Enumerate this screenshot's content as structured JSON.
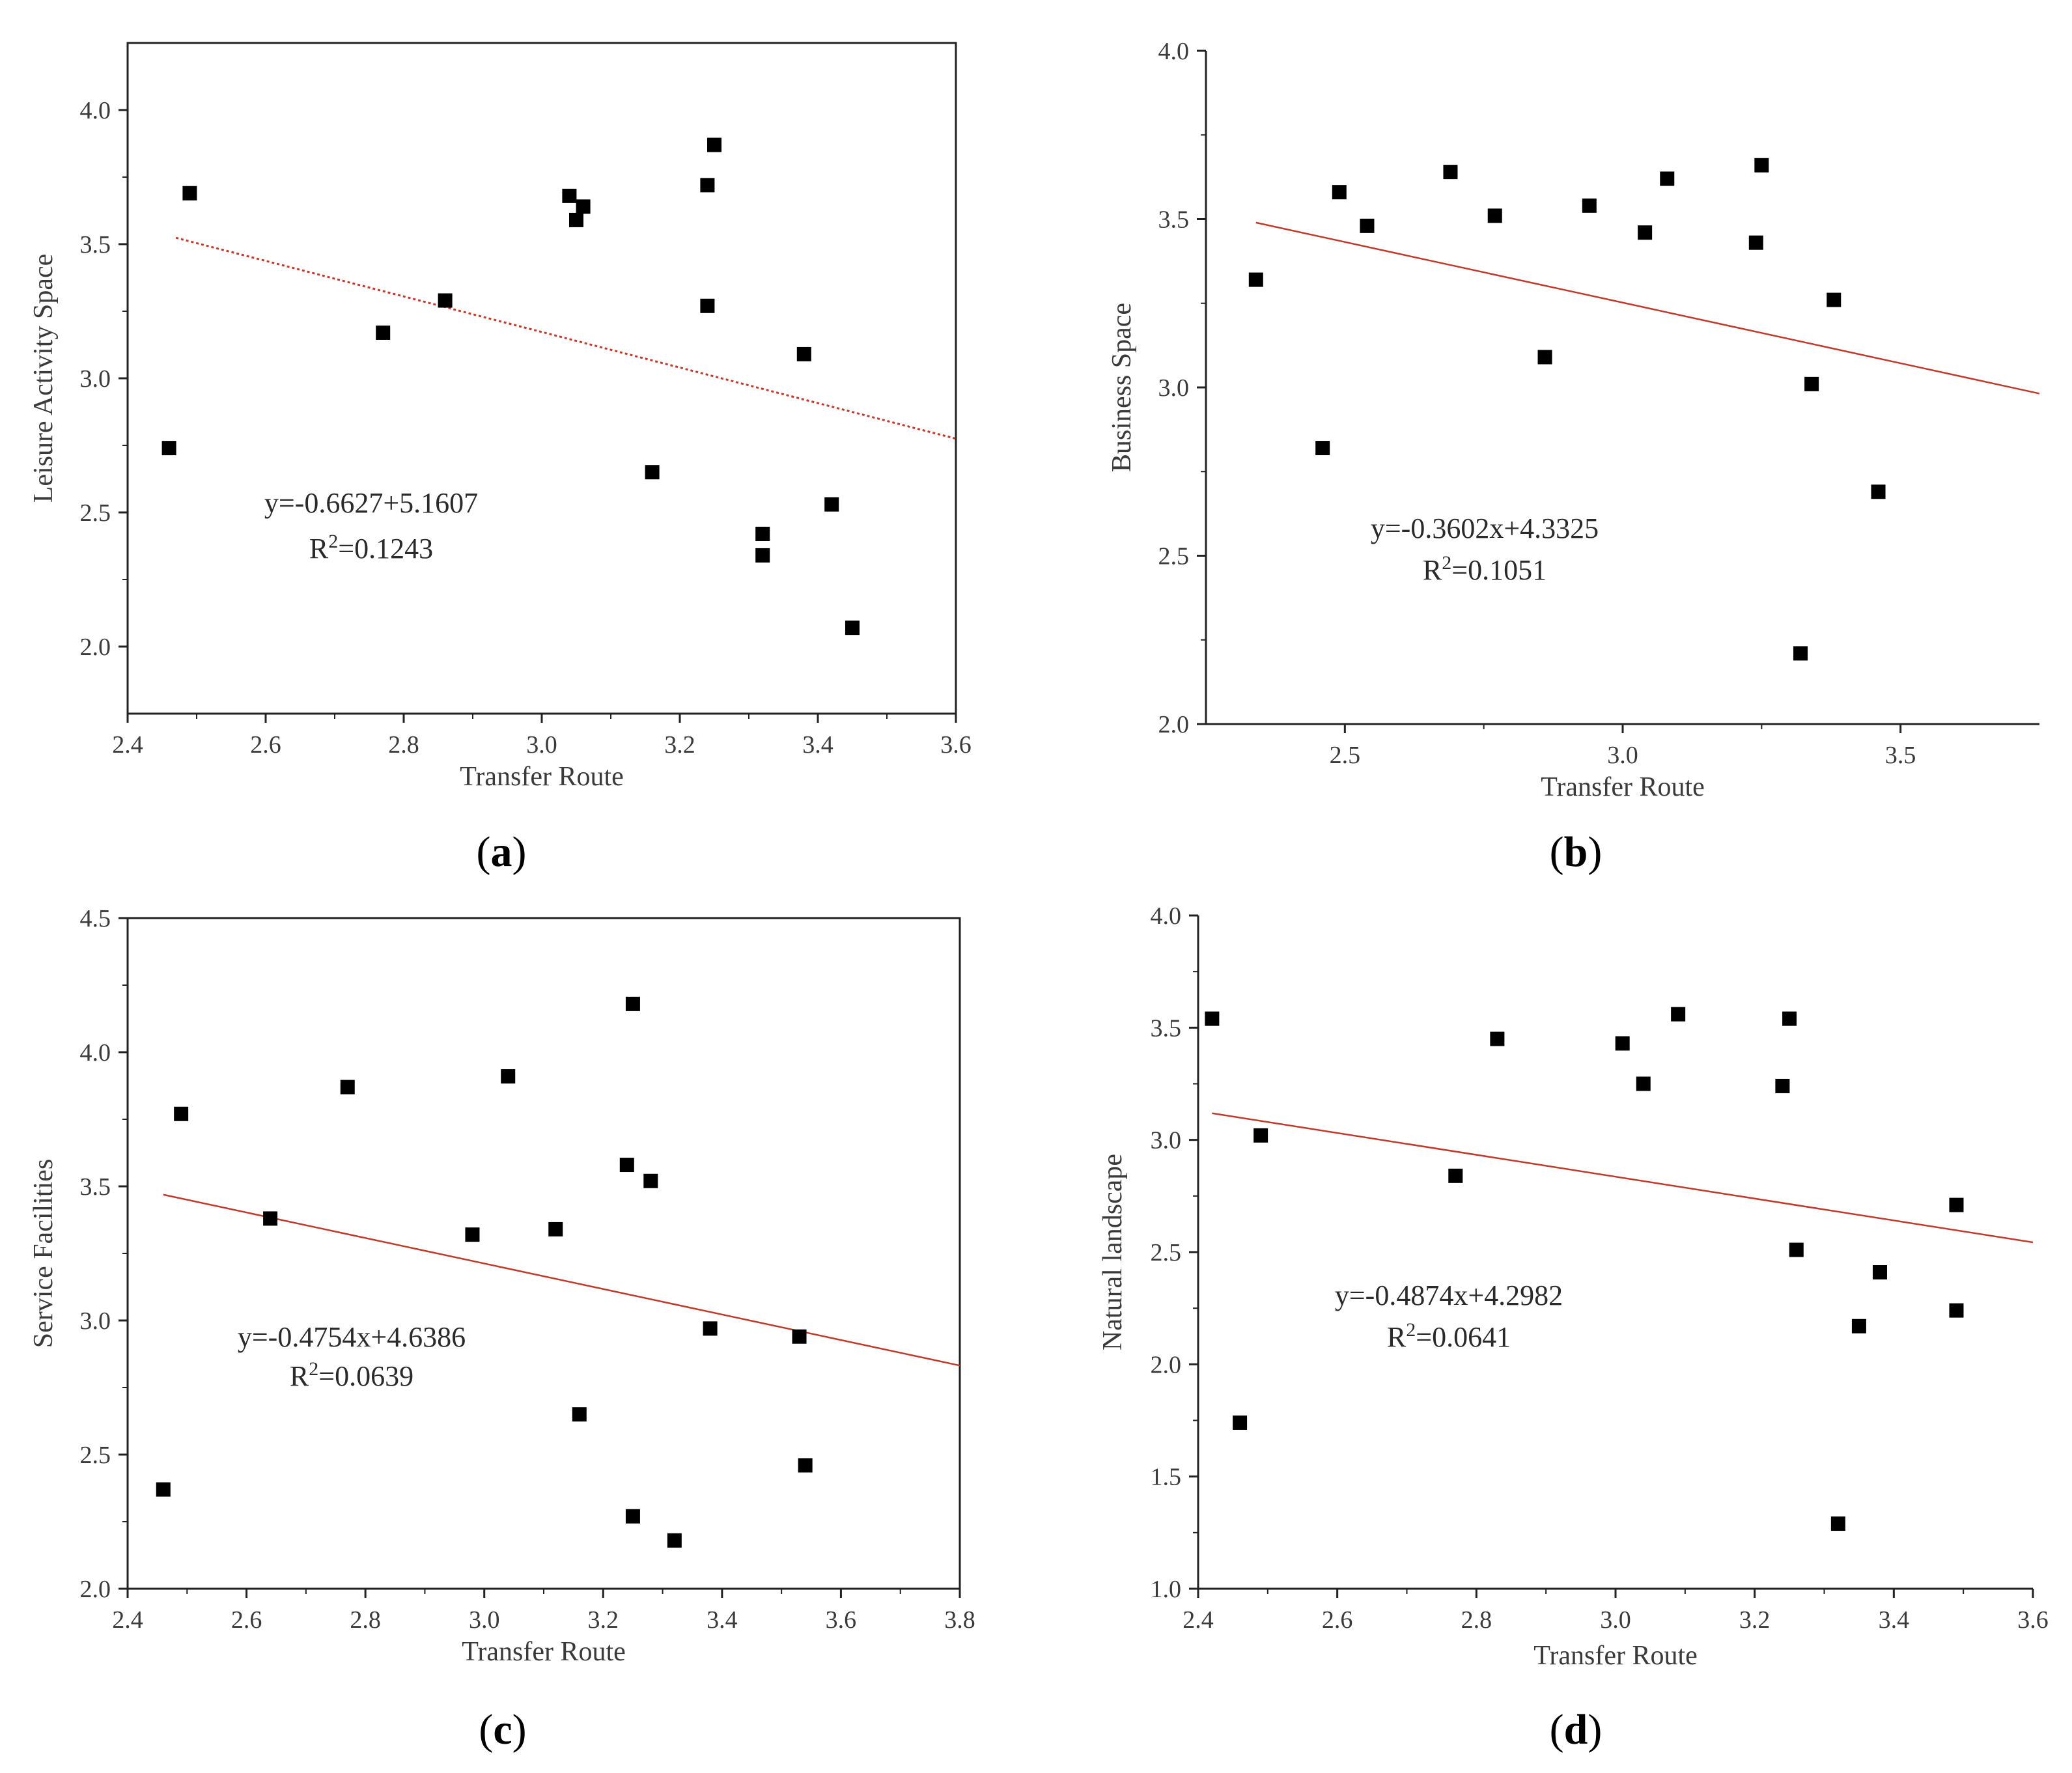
{
  "chart_data": [
    {
      "type": "scatter",
      "panel_label": "a",
      "xlabel": "Transfer Route",
      "ylabel": "Leisure Activity Space",
      "xlim": [
        2.4,
        3.6
      ],
      "ylim": [
        1.75,
        4.25
      ],
      "xticks": [
        "2.4",
        "2.6",
        "2.8",
        "3.0",
        "3.2",
        "3.4",
        "3.6"
      ],
      "yticks": [
        "2.0",
        "2.5",
        "3.0",
        "3.5",
        "4.0"
      ],
      "x": [
        2.46,
        2.49,
        2.77,
        2.86,
        3.04,
        3.05,
        3.06,
        3.16,
        3.24,
        3.24,
        3.25,
        3.32,
        3.32,
        3.38,
        3.42,
        3.45
      ],
      "y": [
        2.74,
        3.69,
        3.17,
        3.29,
        3.68,
        3.59,
        3.64,
        2.65,
        3.72,
        3.27,
        3.87,
        2.42,
        2.34,
        3.09,
        2.53,
        2.07
      ],
      "fit": {
        "slope": -0.6627,
        "intercept": 5.1607,
        "x_range": [
          2.47,
          3.6
        ],
        "style": "dotted"
      },
      "equation": "y=-0.6627+5.1607",
      "r2_prefix": "R",
      "r2_sup": "2",
      "r2_value": "=0.1243"
    },
    {
      "type": "scatter",
      "panel_label": "b",
      "xlabel": "Transfer Route",
      "ylabel": "Business Space",
      "xlim": [
        2.25,
        3.75
      ],
      "ylim": [
        2.0,
        4.0
      ],
      "xticks": [
        "2.5",
        "3.0",
        "3.5"
      ],
      "yticks": [
        "2.0",
        "2.5",
        "3.0",
        "3.5",
        "4.0"
      ],
      "x": [
        2.34,
        2.46,
        2.49,
        2.54,
        2.69,
        2.77,
        2.86,
        2.94,
        3.04,
        3.08,
        3.24,
        3.25,
        3.32,
        3.34,
        3.38,
        3.46
      ],
      "y": [
        3.32,
        2.82,
        3.58,
        3.48,
        3.64,
        3.51,
        3.09,
        3.54,
        3.46,
        3.62,
        3.43,
        3.66,
        2.21,
        3.01,
        3.26,
        2.69
      ],
      "fit": {
        "slope": -0.3602,
        "intercept": 4.3325,
        "x_range": [
          2.34,
          3.75
        ],
        "style": "solid"
      },
      "equation": "y=-0.3602x+4.3325",
      "r2_prefix": "R",
      "r2_sup": "2",
      "r2_value": "=0.1051"
    },
    {
      "type": "scatter",
      "panel_label": "c",
      "xlabel": "Transfer Route",
      "ylabel": "Service Facilities",
      "xlim": [
        2.4,
        3.8
      ],
      "ylim": [
        2.0,
        4.5
      ],
      "xticks": [
        "2.4",
        "2.6",
        "2.8",
        "3.0",
        "3.2",
        "3.4",
        "3.6",
        "3.8"
      ],
      "yticks": [
        "2.0",
        "2.5",
        "3.0",
        "3.5",
        "4.0",
        "4.5"
      ],
      "x": [
        2.46,
        2.49,
        2.64,
        2.77,
        2.98,
        3.04,
        3.12,
        3.16,
        3.24,
        3.25,
        3.25,
        3.28,
        3.32,
        3.38,
        3.53,
        3.54
      ],
      "y": [
        2.37,
        3.77,
        3.38,
        3.87,
        3.32,
        3.91,
        3.34,
        2.65,
        3.58,
        4.18,
        2.27,
        3.52,
        2.18,
        2.97,
        2.94,
        2.46
      ],
      "fit": {
        "slope": -0.4754,
        "intercept": 4.6386,
        "x_range": [
          2.46,
          3.8
        ],
        "style": "solid"
      },
      "equation": "y=-0.4754x+4.6386",
      "r2_prefix": "R",
      "r2_sup": "2",
      "r2_value": "=0.0639"
    },
    {
      "type": "scatter",
      "panel_label": "d",
      "xlabel": "Transfer Route",
      "ylabel": "Natural landscape",
      "xlim": [
        2.4,
        3.6
      ],
      "ylim": [
        1.0,
        4.0
      ],
      "xticks": [
        "2.4",
        "2.6",
        "2.8",
        "3.0",
        "3.2",
        "3.4",
        "3.6"
      ],
      "yticks": [
        "1.0",
        "1.5",
        "2.0",
        "2.5",
        "3.0",
        "3.5",
        "4.0"
      ],
      "x": [
        2.42,
        2.46,
        2.49,
        2.77,
        2.83,
        3.01,
        3.04,
        3.09,
        3.24,
        3.25,
        3.26,
        3.32,
        3.35,
        3.38,
        3.49,
        3.49
      ],
      "y": [
        3.54,
        1.74,
        3.02,
        2.84,
        3.45,
        3.43,
        3.25,
        3.56,
        3.24,
        3.54,
        2.51,
        1.29,
        2.17,
        2.41,
        2.71,
        2.24
      ],
      "fit": {
        "slope": -0.4874,
        "intercept": 4.2982,
        "x_range": [
          2.42,
          3.6
        ],
        "style": "solid"
      },
      "equation": "y=-0.4874x+4.2982",
      "r2_prefix": "R",
      "r2_sup": "2",
      "r2_value": "=0.0641"
    }
  ],
  "colors": {
    "marker": "#000000",
    "fit_line": "#c0392b",
    "axis": "#222222",
    "text": "#3a3a3a"
  }
}
